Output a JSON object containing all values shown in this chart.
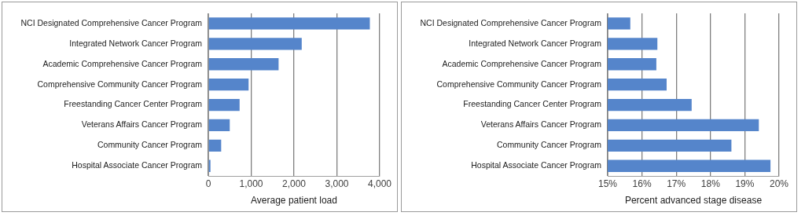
{
  "chart_data": [
    {
      "type": "bar",
      "orientation": "horizontal",
      "xlabel": "Average patient load",
      "categories": [
        "NCI Designated Comprehensive Cancer Program",
        "Integrated Network Cancer Program",
        "Academic Comprehensive Cancer Program",
        "Comprehensive Community Cancer Program",
        "Freestanding Cancer Center Program",
        "Veterans Affairs Cancer Program",
        "Community Cancer Program",
        "Hospital Associate Cancer Program"
      ],
      "values": [
        3770,
        2180,
        1640,
        940,
        730,
        500,
        300,
        50
      ],
      "color": "#5585cb",
      "xlim": [
        0,
        4000
      ],
      "xticks": [
        0,
        {
          "value": 1000,
          "label": "1,000"
        },
        {
          "value": 2000,
          "label": "2,000"
        },
        {
          "value": 3000,
          "label": "3,000"
        },
        {
          "value": 4000,
          "label": "4,000"
        }
      ],
      "grid": "x",
      "legend": false
    },
    {
      "type": "bar",
      "orientation": "horizontal",
      "xlabel": "Percent advanced stage disease",
      "categories": [
        "NCI Designated Comprehensive Cancer Program",
        "Integrated Network Cancer Program",
        "Academic Comprehensive Cancer Program",
        "Comprehensive Community Cancer Program",
        "Freestanding Cancer Center Program",
        "Veterans Affairs Cancer Program",
        "Community Cancer Program",
        "Hospital Associate Cancer Program"
      ],
      "values": [
        15.66,
        16.45,
        16.42,
        16.72,
        17.45,
        19.41,
        18.61,
        19.75
      ],
      "color": "#5585cb",
      "xlim": [
        15,
        20
      ],
      "xticks": [
        {
          "value": 15,
          "label": "15%"
        },
        {
          "value": 16,
          "label": "16%"
        },
        {
          "value": 17,
          "label": "17%"
        },
        {
          "value": 18,
          "label": "18%"
        },
        {
          "value": 19,
          "label": "19%"
        },
        {
          "value": 20,
          "label": "20%"
        }
      ],
      "grid": "x",
      "legend": false
    }
  ]
}
